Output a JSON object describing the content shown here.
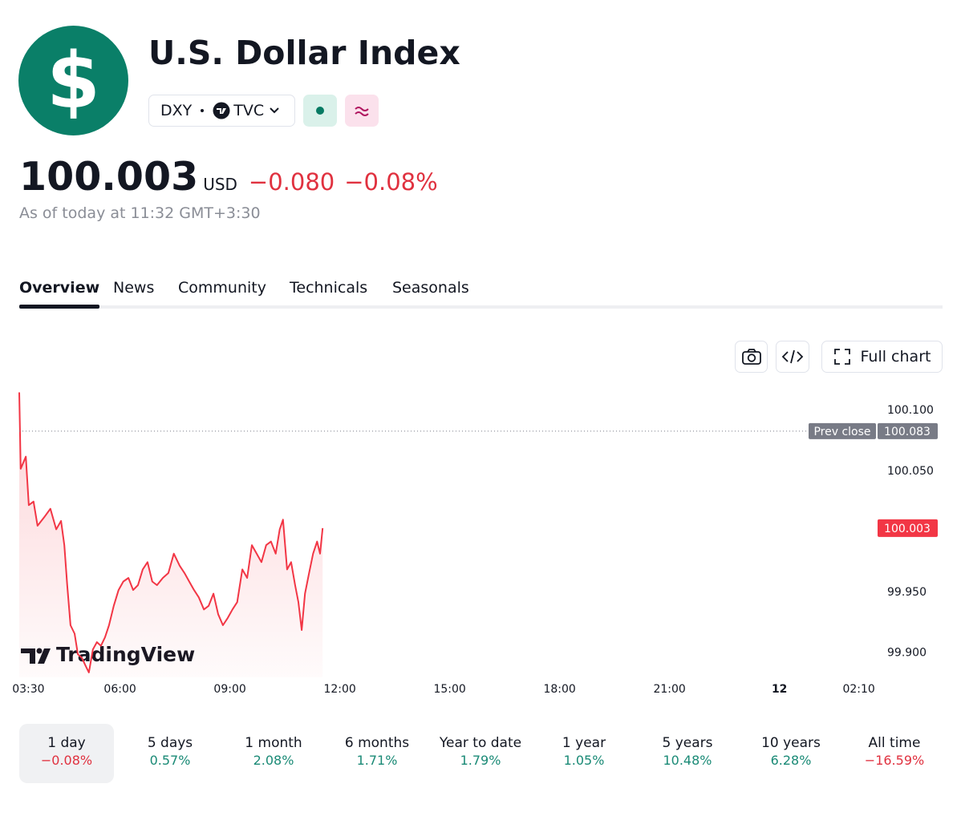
{
  "header": {
    "logo": "$",
    "title": "U.S. Dollar Index",
    "ticker": "DXY",
    "exchange": "TVC",
    "price": "100.003",
    "currency": "USD",
    "change": "−0.080",
    "change_percent": "−0.08%",
    "as_of": "As of today at 11:32 GMT+3:30"
  },
  "tabs": [
    "Overview",
    "News",
    "Community",
    "Technicals",
    "Seasonals"
  ],
  "active_tab": 0,
  "toolbar": {
    "full_chart": "Full chart"
  },
  "chart_data": {
    "type": "line",
    "watermark": "TradingView",
    "x": [
      3.25,
      3.29,
      3.43,
      3.51,
      3.64,
      3.75,
      3.93,
      4.1,
      4.26,
      4.39,
      4.48,
      4.56,
      4.65,
      4.76,
      4.85,
      4.96,
      5.07,
      5.15,
      5.26,
      5.37,
      5.48,
      5.59,
      5.7,
      5.83,
      5.96,
      6.09,
      6.23,
      6.36,
      6.49,
      6.62,
      6.75,
      6.88,
      7.01,
      7.17,
      7.32,
      7.47,
      7.63,
      7.76,
      7.89,
      8.02,
      8.15,
      8.29,
      8.42,
      8.55,
      8.68,
      8.81,
      8.94,
      9.07,
      9.2,
      9.34,
      9.47,
      9.6,
      9.73,
      9.86,
      9.99,
      10.12,
      10.25,
      10.36,
      10.45,
      10.56,
      10.67,
      10.78,
      10.87,
      10.96,
      11.05,
      11.16,
      11.27,
      11.38,
      11.46,
      11.53
    ],
    "series": [
      {
        "name": "DXY",
        "color": "#f23645",
        "values": [
          100.115,
          100.052,
          100.062,
          100.022,
          100.025,
          100.005,
          100.012,
          100.019,
          100.002,
          100.009,
          99.989,
          99.956,
          99.923,
          99.916,
          99.899,
          99.896,
          99.889,
          99.884,
          99.903,
          99.909,
          99.906,
          99.913,
          99.923,
          99.939,
          99.952,
          99.959,
          99.962,
          99.952,
          99.956,
          99.969,
          99.975,
          99.959,
          99.956,
          99.962,
          99.966,
          99.982,
          99.972,
          99.966,
          99.959,
          99.952,
          99.946,
          99.936,
          99.939,
          99.949,
          99.932,
          99.923,
          99.929,
          99.936,
          99.942,
          99.969,
          99.962,
          99.989,
          99.982,
          99.975,
          99.989,
          99.992,
          99.982,
          100.002,
          100.01,
          99.969,
          99.975,
          99.956,
          99.942,
          99.919,
          99.949,
          99.966,
          99.982,
          99.992,
          99.982,
          100.003
        ]
      }
    ],
    "xlim": [
      3.25,
      26.7
    ],
    "xticks": [
      {
        "value": 3.5,
        "label": "03:30"
      },
      {
        "value": 6,
        "label": "06:00"
      },
      {
        "value": 9,
        "label": "09:00"
      },
      {
        "value": 12,
        "label": "12:00"
      },
      {
        "value": 15,
        "label": "15:00"
      },
      {
        "value": 18,
        "label": "18:00"
      },
      {
        "value": 21,
        "label": "21:00"
      },
      {
        "value": 24,
        "label": "12"
      },
      {
        "value": 26.1667,
        "label": "02:10"
      }
    ],
    "ylim": [
      99.88,
      100.116
    ],
    "yticks": [
      {
        "value": 99.9,
        "label": "99.900"
      },
      {
        "value": 99.95,
        "label": "99.950"
      },
      {
        "value": 100.05,
        "label": "100.050"
      },
      {
        "value": 100.1,
        "label": "100.100"
      }
    ],
    "grid": false,
    "prev_close": {
      "label": "Prev close",
      "value": 100.083,
      "color": "#787b86"
    }
  },
  "periods": [
    {
      "label": "1 day",
      "change": "−0.08%"
    },
    {
      "label": "5 days",
      "change": "0.57%"
    },
    {
      "label": "1 month",
      "change": "2.08%"
    },
    {
      "label": "6 months",
      "change": "1.71%"
    },
    {
      "label": "Year to date",
      "change": "1.79%"
    },
    {
      "label": "1 year",
      "change": "1.05%"
    },
    {
      "label": "5 years",
      "change": "10.48%"
    },
    {
      "label": "10 years",
      "change": "6.28%"
    },
    {
      "label": "All time",
      "change": "−16.59%"
    }
  ],
  "active_period": 0
}
